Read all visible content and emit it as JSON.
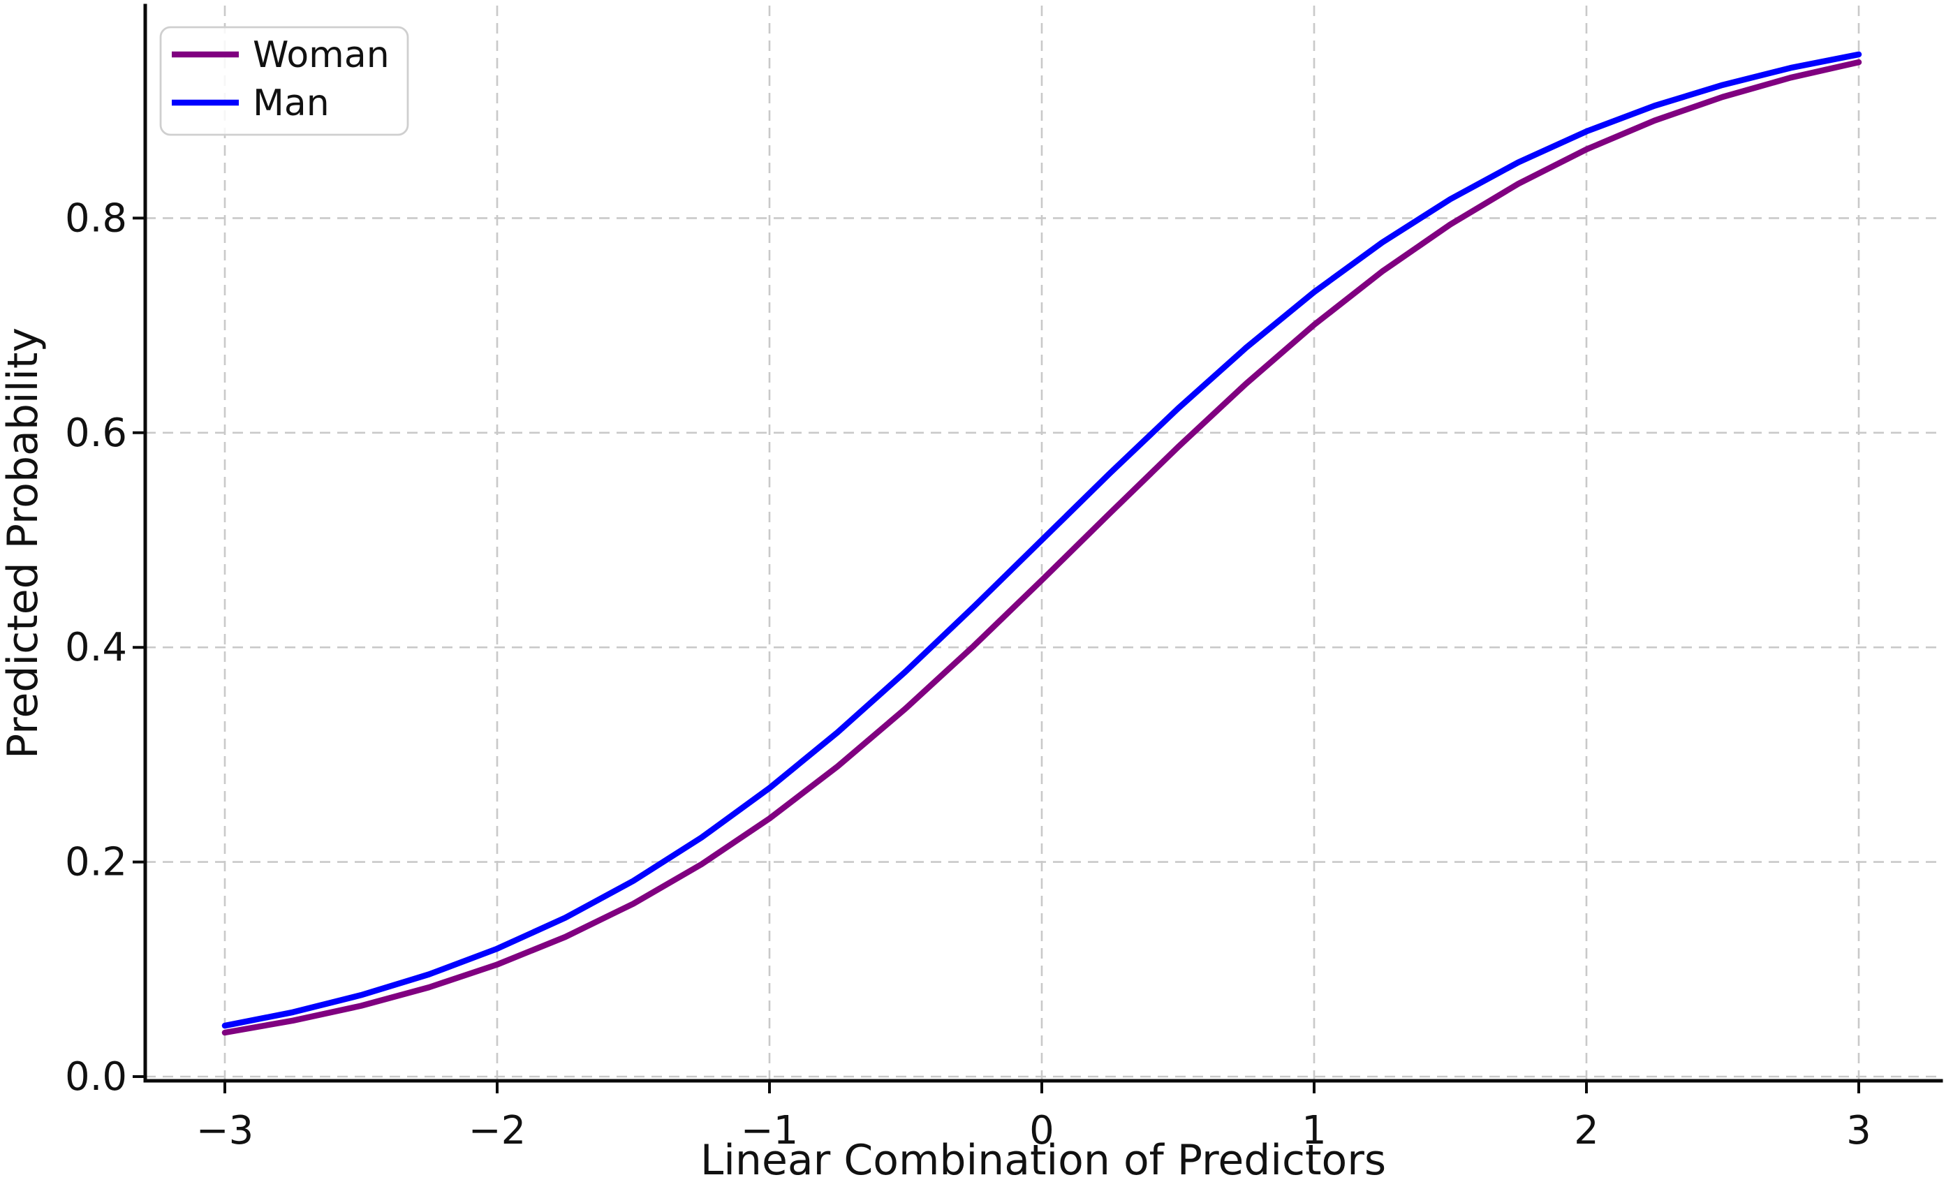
{
  "chart_data": {
    "type": "line",
    "title": "",
    "xlabel": "Linear Combination of Predictors",
    "ylabel": "Predicted Probability",
    "xlim": [
      -3.3,
      3.3
    ],
    "ylim": [
      0,
      1.0
    ],
    "grid": "dashed",
    "grid_color": "#c9c9c9",
    "legend_position": "upper-left",
    "xticks": [
      {
        "label": "−3",
        "value": -3
      },
      {
        "label": "−2",
        "value": -2
      },
      {
        "label": "−1",
        "value": -1
      },
      {
        "label": "0",
        "value": 0
      },
      {
        "label": "1",
        "value": 1
      },
      {
        "label": "2",
        "value": 2
      },
      {
        "label": "3",
        "value": 3
      }
    ],
    "yticks": [
      {
        "label": "0.0",
        "value": 0.0
      },
      {
        "label": "0.2",
        "value": 0.2
      },
      {
        "label": "0.4",
        "value": 0.4
      },
      {
        "label": "0.6",
        "value": 0.6
      },
      {
        "label": "0.8",
        "value": 0.8
      }
    ],
    "x": [
      -3,
      -2.75,
      -2.5,
      -2.25,
      -2,
      -1.75,
      -1.5,
      -1.25,
      -1,
      -0.75,
      -0.5,
      -0.25,
      0,
      0.25,
      0.5,
      0.75,
      1,
      1.25,
      1.5,
      1.75,
      2,
      2.25,
      2.5,
      2.75,
      3
    ],
    "series": [
      {
        "name": "Woman",
        "color": "#800080",
        "values": [
          0.041,
          0.0522,
          0.066,
          0.0832,
          0.1044,
          0.1301,
          0.1611,
          0.1978,
          0.2405,
          0.2891,
          0.343,
          0.4013,
          0.4626,
          0.525,
          0.5866,
          0.6457,
          0.7006,
          0.7503,
          0.7941,
          0.832,
          0.8641,
          0.8909,
          0.9129,
          0.9309,
          0.9453
        ]
      },
      {
        "name": "Man",
        "color": "#0000ff",
        "values": [
          0.0474,
          0.06,
          0.0759,
          0.0953,
          0.1192,
          0.148,
          0.1824,
          0.2227,
          0.2689,
          0.3208,
          0.3775,
          0.4378,
          0.5,
          0.5622,
          0.6225,
          0.6792,
          0.7311,
          0.7773,
          0.8176,
          0.852,
          0.8808,
          0.9047,
          0.9241,
          0.94,
          0.9526
        ]
      }
    ]
  }
}
